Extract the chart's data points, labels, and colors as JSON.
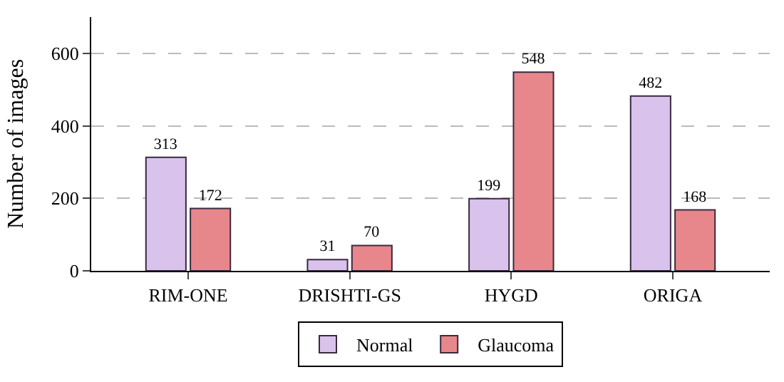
{
  "chart_data": {
    "type": "bar",
    "ylabel": "Number of images",
    "categories": [
      "RIM-ONE",
      "DRISHTI-GS",
      "HYGD",
      "ORIGA"
    ],
    "series": [
      {
        "name": "Normal",
        "color": "#d9c3ec",
        "values": [
          313,
          31,
          199,
          482
        ]
      },
      {
        "name": "Glaucoma",
        "color": "#e8878b",
        "values": [
          172,
          70,
          548,
          168
        ]
      }
    ],
    "ylim": [
      0,
      700
    ],
    "yticks": [
      0,
      200,
      400,
      600
    ],
    "grid": "y",
    "legend": "bottom",
    "data_labels": true
  }
}
